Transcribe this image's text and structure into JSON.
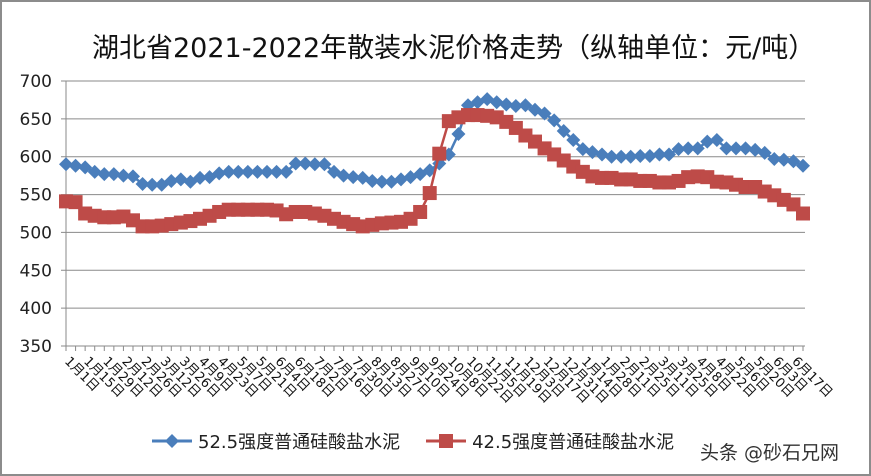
{
  "chart_data": {
    "type": "line",
    "title": "湖北省2021-2022年散装水泥价格走势（纵轴单位：元/吨）",
    "xlabel": "",
    "ylabel": "元/吨",
    "ylim": [
      350,
      700
    ],
    "yticks": [
      350,
      400,
      450,
      500,
      550,
      600,
      650,
      700
    ],
    "grid": true,
    "legend_position": "bottom",
    "categories": [
      "1月1日",
      "1月8日",
      "1月15日",
      "1月22日",
      "1月29日",
      "2月5日",
      "2月12日",
      "2月19日",
      "2月26日",
      "3月5日",
      "3月12日",
      "3月19日",
      "3月26日",
      "4月2日",
      "4月9日",
      "4月16日",
      "4月23日",
      "4月30日",
      "5月7日",
      "5月14日",
      "5月21日",
      "5月28日",
      "6月4日",
      "6月11日",
      "6月18日",
      "6月25日",
      "7月2日",
      "7月9日",
      "7月16日",
      "7月23日",
      "7月30日",
      "8月6日",
      "8月13日",
      "8月20日",
      "8月27日",
      "9月3日",
      "9月10日",
      "9月17日",
      "9月24日",
      "10月1日",
      "10月8日",
      "10月15日",
      "10月22日",
      "10月29日",
      "11月5日",
      "11月12日",
      "11月19日",
      "11月26日",
      "12月3日",
      "12月10日",
      "12月17日",
      "12月24日",
      "12月31日",
      "1月7日",
      "1月14日",
      "1月21日",
      "1月28日",
      "2月4日",
      "2月11日",
      "2月18日",
      "2月25日",
      "3月4日",
      "3月11日",
      "3月18日",
      "3月25日",
      "4月1日",
      "4月8日",
      "4月15日",
      "4月22日",
      "4月29日",
      "5月6日",
      "5月13日",
      "5月20日",
      "5月27日",
      "6月3日",
      "6月10日",
      "6月17日",
      "6月24日"
    ],
    "series": [
      {
        "name": "52.5强度普通硅酸盐水泥",
        "color": "#4a7ebb",
        "marker": "diamond",
        "values": [
          590,
          588,
          586,
          580,
          577,
          577,
          575,
          574,
          564,
          563,
          563,
          568,
          570,
          567,
          572,
          573,
          578,
          580,
          580,
          580,
          580,
          580,
          580,
          580,
          591,
          591,
          590,
          590,
          580,
          575,
          573,
          572,
          568,
          567,
          567,
          570,
          573,
          577,
          582,
          591,
          603,
          630,
          668,
          672,
          676,
          672,
          669,
          667,
          668,
          662,
          657,
          648,
          634,
          622,
          610,
          606,
          603,
          600,
          600,
          600,
          601,
          601,
          603,
          603,
          610,
          611,
          611,
          620,
          622,
          611,
          611,
          611,
          609,
          605,
          597,
          596,
          594,
          588
        ]
      },
      {
        "name": "42.5强度普通硅酸盐水泥",
        "color": "#be4b48",
        "marker": "square",
        "values": [
          541,
          540,
          525,
          522,
          520,
          520,
          521,
          516,
          508,
          508,
          509,
          511,
          513,
          515,
          518,
          522,
          527,
          530,
          530,
          530,
          530,
          530,
          529,
          524,
          527,
          527,
          525,
          522,
          518,
          514,
          511,
          508,
          510,
          512,
          513,
          514,
          518,
          527,
          552,
          604,
          647,
          652,
          655,
          655,
          654,
          652,
          646,
          638,
          628,
          620,
          611,
          603,
          595,
          587,
          580,
          574,
          572,
          572,
          570,
          570,
          568,
          568,
          566,
          566,
          568,
          573,
          574,
          573,
          567,
          566,
          563,
          560,
          560,
          554,
          549,
          543,
          537,
          525
        ]
      }
    ]
  },
  "legend": {
    "items": [
      {
        "label": "52.5强度普通硅酸盐水泥",
        "color": "#4a7ebb"
      },
      {
        "label": "42.5强度普通硅酸盐水泥",
        "color": "#be4b48"
      }
    ]
  },
  "watermark": "头条 @砂石兄网"
}
